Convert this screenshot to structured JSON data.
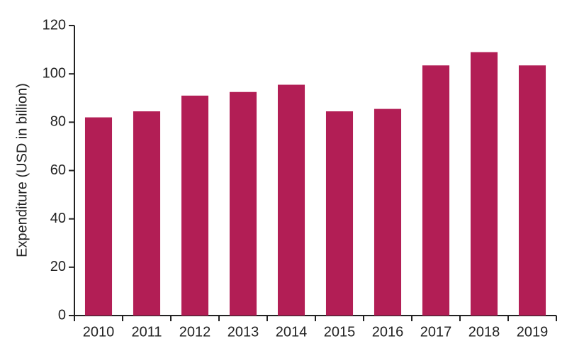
{
  "chart_data": {
    "type": "bar",
    "y_label": "Expenditure (USD in billion)",
    "categories": [
      "2010",
      "2011",
      "2012",
      "2013",
      "2014",
      "2015",
      "2016",
      "2017",
      "2018",
      "2019"
    ],
    "values": [
      82,
      84.5,
      91,
      92.5,
      95.5,
      84.5,
      85.5,
      103.5,
      109,
      103.5
    ],
    "color": "#b21e55",
    "ylim": [
      0,
      120
    ],
    "yticks": [
      0,
      20,
      40,
      60,
      80,
      100,
      120
    ],
    "grid": false
  }
}
